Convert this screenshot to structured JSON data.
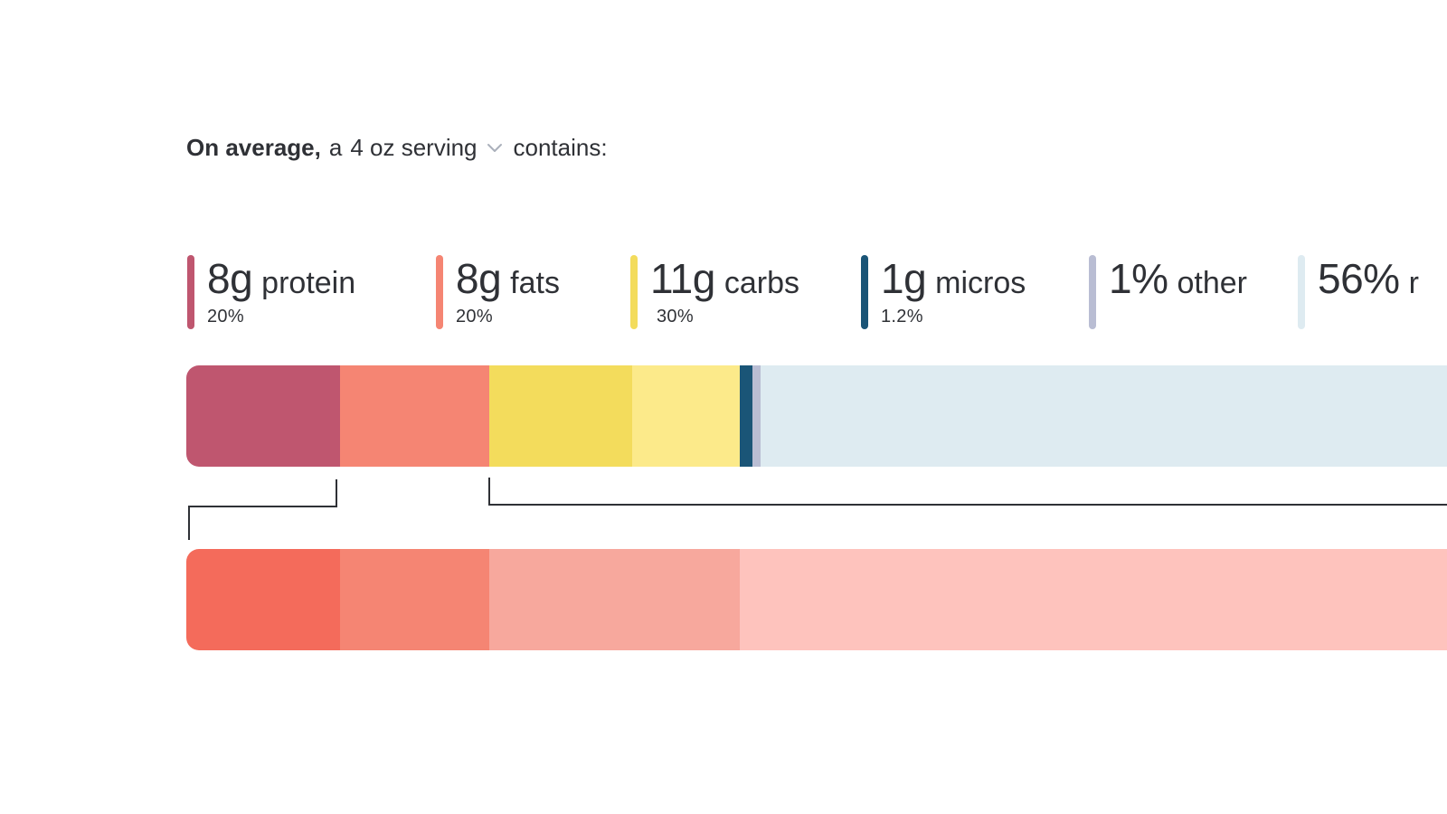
{
  "headline": {
    "lead_bold": "On average,",
    "article": "a",
    "serving_value": "4 oz serving",
    "trailing": "contains:"
  },
  "icons": {
    "serving_dropdown": "chevron-down-icon"
  },
  "legend": [
    {
      "amount": "8g",
      "label": "protein",
      "pct": "20%",
      "color": "#bf566f"
    },
    {
      "amount": "8g",
      "label": "fats",
      "pct": "20%",
      "color": "#f58573"
    },
    {
      "amount": "11g",
      "label": "carbs",
      "pct": "30%",
      "color": "#f3dc5c"
    },
    {
      "amount": "1g",
      "label": "micros",
      "pct": "1.2%",
      "color": "#1a5577"
    },
    {
      "amount": "1%",
      "label": "other",
      "pct": "",
      "color": "#b9bdd3"
    },
    {
      "amount": "56%",
      "label": "r",
      "pct": "",
      "color": "#deebf1"
    }
  ],
  "composition_bar": {
    "segments": [
      {
        "name": "protein",
        "color": "#bf566f"
      },
      {
        "name": "fats",
        "color": "#f58573"
      },
      {
        "name": "carbs-a",
        "color": "#f3dc5c"
      },
      {
        "name": "carbs-b",
        "color": "#fcea8a"
      },
      {
        "name": "micros",
        "color": "#1a5577"
      },
      {
        "name": "other",
        "color": "#b9bdd3"
      },
      {
        "name": "rest",
        "color": "#deebf1"
      }
    ]
  },
  "detail_bar": {
    "segments": [
      {
        "name": "detail-1",
        "color": "#f46b5b"
      },
      {
        "name": "detail-2",
        "color": "#f58573"
      },
      {
        "name": "detail-3",
        "color": "#f7a89d"
      },
      {
        "name": "detail-4",
        "color": "#fec3bd"
      }
    ]
  },
  "colors": {
    "text": "#2f3136",
    "connector": "#2f3136",
    "chevron": "#aab0bb"
  }
}
